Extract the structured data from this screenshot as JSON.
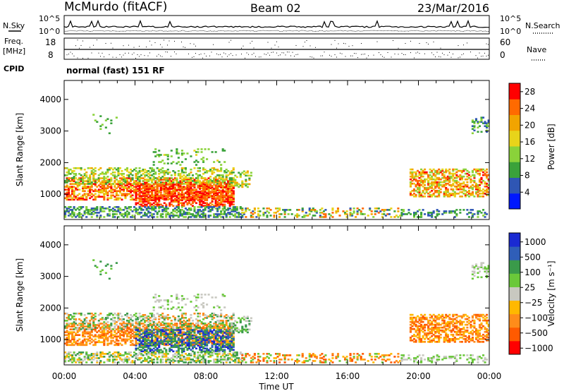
{
  "header": {
    "station": "McMurdo (fitACF)",
    "beam": "Beam 02",
    "date": "23/Mar/2016"
  },
  "noise_panel": {
    "left_label": "N.Sky",
    "left_ticks": [
      "10^5",
      "10^0"
    ],
    "right_label": "N.Search",
    "right_ticks": [
      "10^5",
      "10^0"
    ]
  },
  "freq_panel": {
    "left_label_top": "Freq.",
    "left_label_unit": "[MHz]",
    "left_ticks": [
      "18",
      "8"
    ],
    "right_label": "Nave",
    "right_ticks": [
      "60",
      "0"
    ]
  },
  "cpid": {
    "label": "CPID",
    "mode": "normal (fast) 151 RF"
  },
  "colors": {
    "power_scale": [
      "#0018ff",
      "#2f56b4",
      "#3aa23a",
      "#8ad23a",
      "#e8d41a",
      "#f2a400",
      "#ff6a00",
      "#ff0000"
    ],
    "velocity_scale": [
      "#ff0000",
      "#ff5a00",
      "#ff8c1a",
      "#ffb800",
      "#c8c8c0",
      "#6ac83a",
      "#3a9a4a",
      "#2f5eb8",
      "#1a2ad2"
    ]
  },
  "chart_data": [
    {
      "type": "heatmap",
      "title": "",
      "ylabel": "Slant Range [km]",
      "xlabel": "",
      "ylim": [
        200,
        4600
      ],
      "y_ticks": [
        "1000",
        "2000",
        "3000",
        "4000"
      ],
      "x_ticks": [
        "00:00",
        "04:00",
        "08:00",
        "12:00",
        "16:00",
        "20:00",
        "00:00"
      ],
      "colorbar": {
        "label": "Power [dB]",
        "ticks": [
          "28",
          "24",
          "20",
          "16",
          "12",
          "8",
          "4"
        ],
        "range": [
          0,
          30
        ]
      }
    },
    {
      "type": "heatmap",
      "title": "",
      "ylabel": "Slant Range [km]",
      "xlabel": "Time UT",
      "ylim": [
        200,
        4600
      ],
      "y_ticks": [
        "1000",
        "2000",
        "3000",
        "4000"
      ],
      "x_ticks": [
        "00:00",
        "04:00",
        "08:00",
        "12:00",
        "16:00",
        "20:00",
        "00:00"
      ],
      "colorbar": {
        "label": "Velocity [m s⁻¹]",
        "ticks": [
          "1000",
          "500",
          "100",
          "25",
          "−25",
          "−100",
          "−500",
          "−1000"
        ]
      }
    }
  ]
}
